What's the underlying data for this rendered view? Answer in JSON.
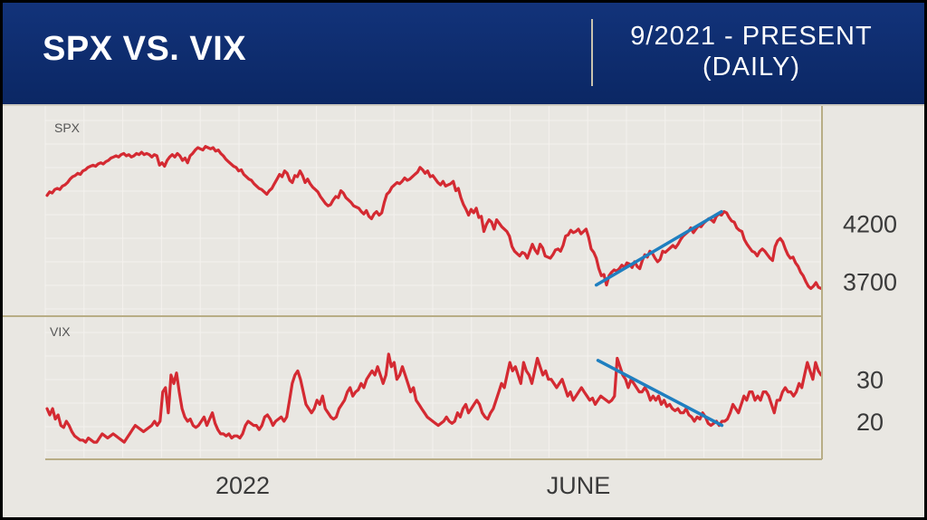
{
  "header": {
    "title": "SPX VS. VIX",
    "range_line1": "9/2021 - PRESENT",
    "range_line2": "(DAILY)"
  },
  "colors": {
    "header_bg": "#0c2a6b",
    "series": "#d42a32",
    "trendline": "#1f7fc0",
    "axis": "#b8ad86",
    "grid": "#f4f2ee",
    "panel_bg": "#e9e7e2"
  },
  "chart_data": [
    {
      "type": "line",
      "panel_label": "SPX",
      "series": [
        {
          "values": [
            4440,
            4470,
            4460,
            4490,
            4500,
            4490,
            4520,
            4530,
            4550,
            4580,
            4600,
            4610,
            4630,
            4620,
            4650,
            4660,
            4680,
            4690,
            4700,
            4690,
            4710,
            4720,
            4710,
            4730,
            4740,
            4760,
            4770,
            4780,
            4770,
            4790,
            4800,
            4780,
            4790,
            4770,
            4780,
            4800,
            4790,
            4810,
            4790,
            4800,
            4790,
            4770,
            4790,
            4780,
            4700,
            4720,
            4690,
            4740,
            4770,
            4790,
            4770,
            4800,
            4780,
            4740,
            4760,
            4720,
            4780,
            4800,
            4830,
            4850,
            4840,
            4830,
            4860,
            4850,
            4840,
            4850,
            4820,
            4830,
            4800,
            4780,
            4750,
            4730,
            4710,
            4690,
            4680,
            4650,
            4660,
            4620,
            4600,
            4580,
            4570,
            4540,
            4520,
            4500,
            4490,
            4470,
            4450,
            4480,
            4500,
            4540,
            4580,
            4620,
            4600,
            4650,
            4630,
            4570,
            4550,
            4610,
            4600,
            4650,
            4610,
            4550,
            4580,
            4540,
            4510,
            4490,
            4470,
            4430,
            4400,
            4370,
            4350,
            4360,
            4400,
            4430,
            4420,
            4480,
            4460,
            4420,
            4400,
            4380,
            4350,
            4340,
            4330,
            4300,
            4280,
            4310,
            4260,
            4240,
            4280,
            4300,
            4270,
            4290,
            4380,
            4450,
            4470,
            4510,
            4530,
            4550,
            4540,
            4560,
            4590,
            4570,
            4580,
            4600,
            4620,
            4640,
            4680,
            4660,
            4630,
            4650,
            4600,
            4610,
            4580,
            4550,
            4530,
            4560,
            4520,
            4530,
            4540,
            4560,
            4480,
            4500,
            4420,
            4360,
            4320,
            4270,
            4320,
            4290,
            4330,
            4250,
            4260,
            4130,
            4190,
            4230,
            4210,
            4150,
            4230,
            4200,
            4170,
            4150,
            4130,
            4090,
            4000,
            3960,
            3940,
            3920,
            3950,
            3940,
            3900,
            3960,
            4020,
            3970,
            3940,
            4020,
            3990,
            3920,
            3910,
            3900,
            3930,
            3970,
            3980,
            3960,
            4010,
            4090,
            4100,
            4140,
            4120,
            4130,
            4150,
            4110,
            4130,
            4150,
            4080,
            3980,
            3950,
            3900,
            3810,
            3750,
            3760,
            3670,
            3750,
            3780,
            3800,
            3790,
            3810,
            3840,
            3820,
            3860,
            3850,
            3820,
            3870,
            3830,
            3810,
            3880,
            3930,
            3910,
            3960,
            3940,
            3900,
            3870,
            3890,
            3960,
            3950,
            3970,
            3990,
            4010,
            3990,
            4020,
            4060,
            4090,
            4110,
            4130,
            4160,
            4120,
            4150,
            4180,
            4170,
            4200,
            4220,
            4240,
            4230,
            4210,
            4260,
            4280,
            4270,
            4300,
            4290,
            4250,
            4220,
            4210,
            4160,
            4140,
            4130,
            4060,
            4020,
            3990,
            3960,
            3950,
            3920,
            3960,
            3980,
            3960,
            3930,
            3900,
            3880,
            4000,
            4050,
            4070,
            4040,
            3980,
            3930,
            3900,
            3910,
            3860,
            3830,
            3780,
            3750,
            3700,
            3660,
            3640,
            3660,
            3690,
            3650,
            3640
          ]
        }
      ],
      "y_ticks": [
        4200,
        3700
      ],
      "ylim": [
        3550,
        4990
      ],
      "trendline": {
        "from": 3670,
        "to": 4300
      }
    },
    {
      "type": "line",
      "panel_label": "VIX",
      "series": [
        {
          "values": [
            23,
            21.5,
            23,
            20.5,
            21.5,
            19,
            18.5,
            20,
            19,
            17.5,
            16.5,
            16,
            15.5,
            15.5,
            15,
            16,
            15.5,
            15,
            15,
            16,
            17,
            16.5,
            16,
            16.5,
            17,
            16.5,
            16,
            15.5,
            15,
            16,
            17,
            18,
            19,
            18.5,
            18,
            17.5,
            18,
            18.5,
            19,
            20,
            19,
            20,
            27,
            28,
            22,
            31,
            29,
            31.5,
            27,
            23,
            21,
            20,
            20.5,
            19,
            18.5,
            19,
            20,
            21,
            19,
            20.5,
            22,
            19.5,
            18,
            17,
            17,
            16.5,
            17,
            16,
            16.5,
            16.5,
            16,
            17,
            19,
            20,
            19.5,
            19,
            19,
            18,
            19,
            21,
            21.5,
            20.5,
            19,
            20,
            20.5,
            21,
            20,
            21,
            25,
            29,
            31,
            32,
            30,
            27,
            24,
            23,
            22,
            23,
            25,
            24,
            26,
            23,
            22,
            21,
            20.5,
            21,
            23,
            24,
            25,
            27,
            28,
            26,
            27,
            27.5,
            29,
            28,
            30,
            31,
            32,
            31,
            33,
            31,
            29,
            31,
            36,
            33,
            34,
            30,
            31,
            33,
            31,
            29,
            27,
            28,
            25,
            24,
            23,
            22,
            21,
            20.5,
            20,
            19.5,
            19,
            19.5,
            20,
            21,
            20,
            19.5,
            20,
            22,
            21,
            23,
            24,
            22,
            23,
            24,
            25,
            24,
            22,
            21,
            20.5,
            22,
            23,
            25,
            27,
            29,
            28,
            31,
            34,
            32,
            33,
            31,
            29,
            34,
            32,
            31,
            29,
            32,
            35,
            33,
            31,
            32,
            30,
            30,
            29,
            28,
            29,
            30,
            28,
            26,
            27,
            25,
            26,
            27,
            28,
            27,
            26,
            25,
            25.5,
            24,
            25,
            26,
            25.5,
            25,
            24.5,
            25,
            26,
            35,
            33,
            31,
            30,
            28,
            30,
            29,
            28,
            27,
            27,
            28,
            27,
            25,
            26,
            25,
            26,
            24,
            25,
            23.5,
            24,
            23,
            22.5,
            23,
            22,
            22,
            23,
            21.5,
            21,
            20,
            21,
            20.5,
            22,
            21,
            19.5,
            19,
            19.5,
            20,
            19,
            20,
            20,
            20.5,
            22,
            24,
            23,
            22,
            24,
            26,
            25,
            27,
            27,
            25,
            26,
            25,
            27,
            27,
            26,
            24,
            22,
            25,
            25,
            27,
            28,
            27,
            27,
            26,
            27,
            29,
            28,
            31,
            34,
            32,
            30,
            34,
            32,
            31
          ]
        }
      ],
      "y_ticks": [
        30,
        20
      ],
      "ylim": [
        12,
        39
      ],
      "trendline": {
        "from": 34.5,
        "to": 19
      }
    }
  ],
  "x_axis": {
    "ticks": [
      "2022",
      "JUNE"
    ]
  }
}
